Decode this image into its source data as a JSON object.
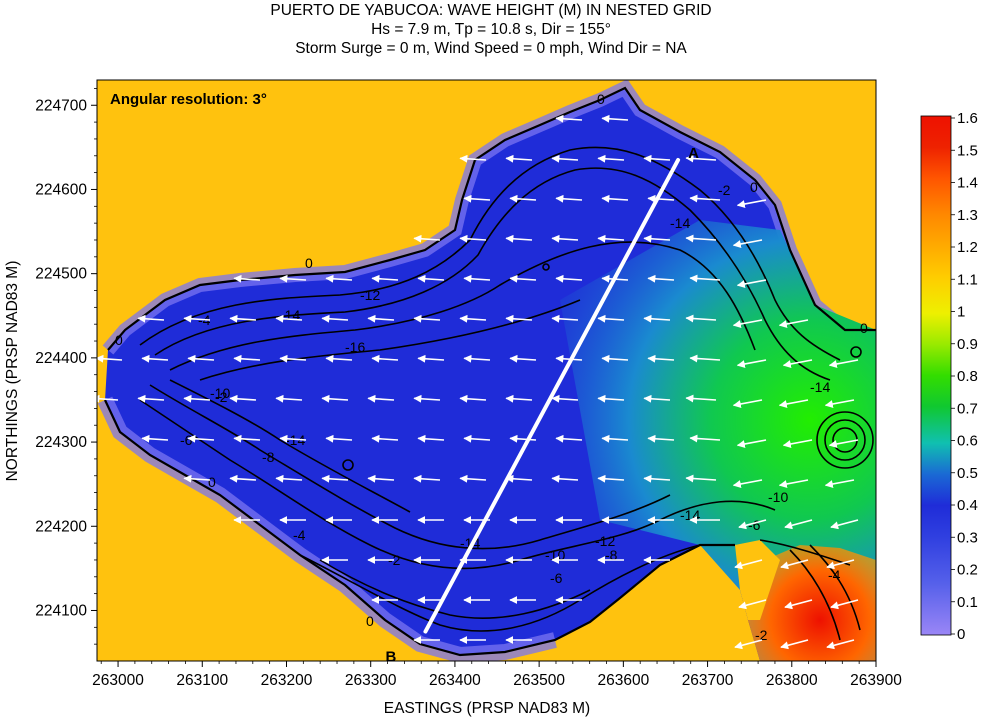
{
  "chart_data": {
    "type": "heatmap",
    "title": "PUERTO DE YABUCOA: WAVE HEIGHT (M) IN NESTED GRID",
    "subtitle_lines": [
      "Hs = 7.9 m, Tp = 10.8 s, Dir = 155°",
      "Storm Surge = 0 m, Wind Speed = 0 mph, Wind Dir = NA"
    ],
    "xlabel": "EASTINGS (PRSP NAD83 M)",
    "ylabel": "NORTHINGS (PRSP NAD83 M)",
    "xlim": [
      262975,
      263900
    ],
    "ylim": [
      224040,
      224730
    ],
    "x_ticks": [
      263000,
      263100,
      263200,
      263300,
      263400,
      263500,
      263600,
      263700,
      263800,
      263900
    ],
    "y_ticks": [
      224100,
      224200,
      224300,
      224400,
      224500,
      224600,
      224700
    ],
    "annotation": "Angular resolution: 3°",
    "transect": {
      "start_label": "A",
      "end_label": "B",
      "start": [
        263665,
        224635
      ],
      "end": [
        263365,
        224075
      ]
    },
    "colorbar": {
      "min": 0,
      "max": 1.6,
      "ticks": [
        "1.6",
        "1.5",
        "1.4",
        "1.3",
        "1.2",
        "1.1",
        "1",
        "0.9",
        "0.8",
        "0.7",
        "0.6",
        "0.5",
        "0.4",
        "0.3",
        "0.2",
        "0.1",
        "0"
      ]
    },
    "contour_labels": [
      "0",
      "-2",
      "-4",
      "-6",
      "-8",
      "-10",
      "-12",
      "-14",
      "-16"
    ],
    "wave_direction_arrows": "white vectors, mostly pointing west (toward shore)"
  },
  "colors": {
    "land": "#ffc20e",
    "colormap": [
      "#9a86f6",
      "#2f3fe0",
      "#1f2cd8",
      "#1a8ad0",
      "#10c830",
      "#33dd00",
      "#eef000",
      "#ff8800",
      "#ee1100"
    ],
    "arrow": "#ffffff",
    "contour": "#000000",
    "transect_line": "#ffffff"
  }
}
